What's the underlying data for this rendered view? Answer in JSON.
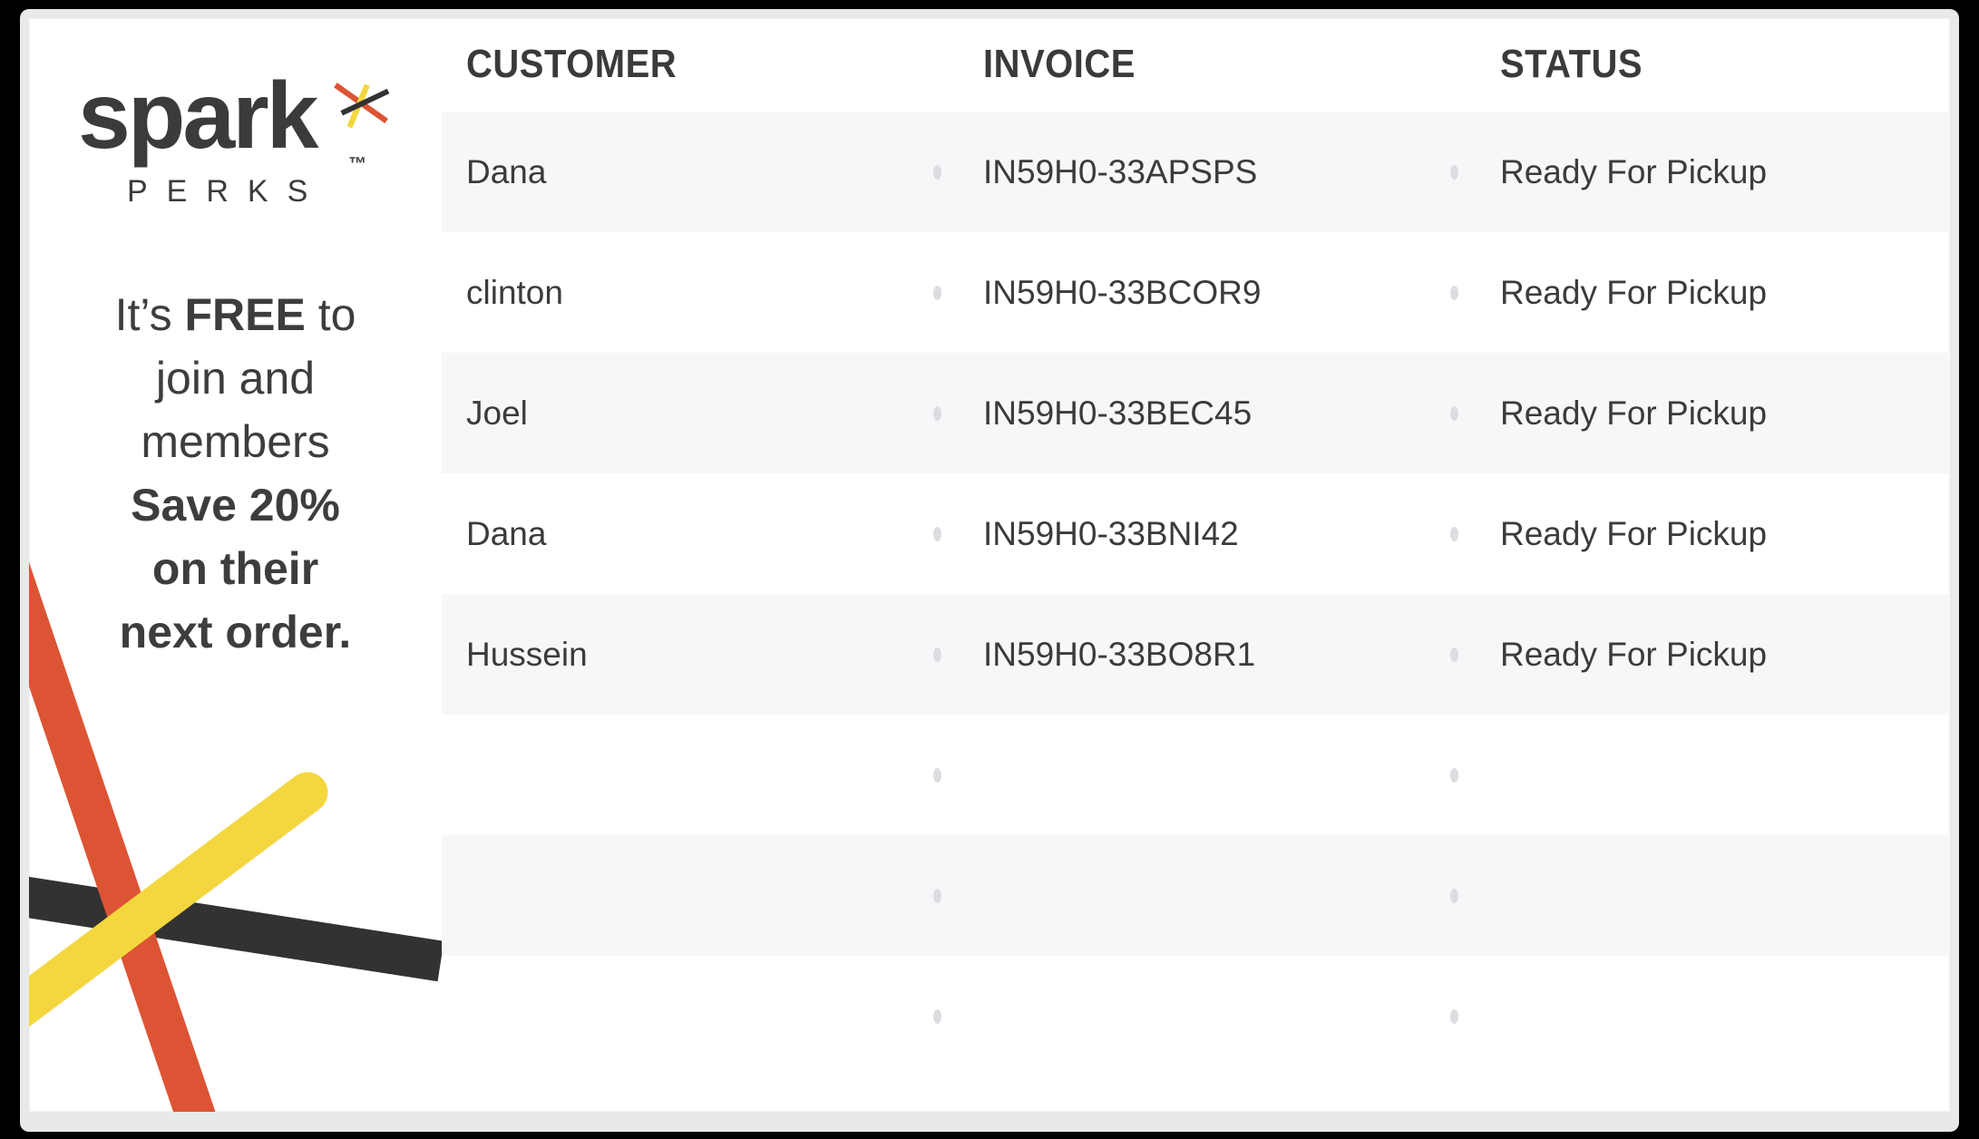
{
  "brand": {
    "name": "spark",
    "sub": "PERKS",
    "trademark": "™"
  },
  "promo": {
    "lines": [
      [
        {
          "t": "It’s ",
          "b": false
        },
        {
          "t": "FREE",
          "b": true
        },
        {
          "t": " to",
          "b": false
        }
      ],
      [
        {
          "t": "join and",
          "b": false
        }
      ],
      [
        {
          "t": "members",
          "b": false
        }
      ],
      [
        {
          "t": "Save 20%",
          "b": true
        }
      ],
      [
        {
          "t": "on their",
          "b": true
        }
      ],
      [
        {
          "t": "next order.",
          "b": true
        }
      ]
    ]
  },
  "table": {
    "columns": [
      "CUSTOMER",
      "INVOICE",
      "STATUS"
    ],
    "rows": [
      {
        "customer": "Dana",
        "invoice": "IN59H0-33APSPS",
        "status": "Ready For Pickup"
      },
      {
        "customer": "clinton",
        "invoice": "IN59H0-33BCOR9",
        "status": "Ready For Pickup"
      },
      {
        "customer": "Joel",
        "invoice": "IN59H0-33BEC45",
        "status": "Ready For Pickup"
      },
      {
        "customer": "Dana",
        "invoice": "IN59H0-33BNI42",
        "status": "Ready For Pickup"
      },
      {
        "customer": "Hussein",
        "invoice": "IN59H0-33BO8R1",
        "status": "Ready For Pickup"
      },
      {
        "customer": "",
        "invoice": "",
        "status": ""
      },
      {
        "customer": "",
        "invoice": "",
        "status": ""
      },
      {
        "customer": "",
        "invoice": "",
        "status": ""
      }
    ]
  },
  "colors": {
    "accent_red": "#dc5434",
    "accent_yellow": "#f4d73e",
    "bar_black": "#333233",
    "text": "#3b3b3b",
    "row_stripe": "#f6f7f8",
    "frame": "#e8eaea",
    "separator_dot": "#dcdce1",
    "background": "#000000"
  }
}
